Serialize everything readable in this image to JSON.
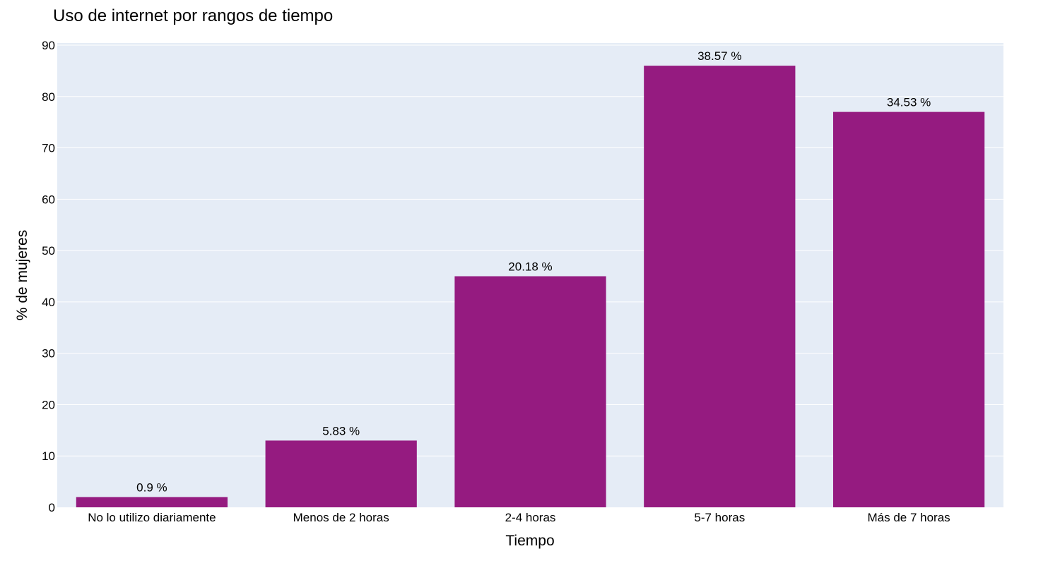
{
  "chart_data": {
    "type": "bar",
    "title": "Uso de internet por rangos de tiempo",
    "xlabel": "Tiempo",
    "ylabel": "% de mujeres",
    "categories": [
      "No lo utilizo diariamente",
      "Menos de 2 horas",
      "2-4 horas",
      "5-7 horas",
      "Más de 7 horas"
    ],
    "values": [
      2,
      13,
      45,
      86,
      77
    ],
    "data_labels": [
      "0.9 %",
      "5.83 %",
      "20.18 %",
      "38.57 %",
      "34.53 %"
    ],
    "ylim": [
      0,
      90
    ],
    "yticks": [
      0,
      10,
      20,
      30,
      40,
      50,
      60,
      70,
      80,
      90
    ],
    "grid": true,
    "colors": {
      "bar": "#951b80",
      "plot_background": "#e5ecf6",
      "gridline": "#ffffff"
    }
  }
}
